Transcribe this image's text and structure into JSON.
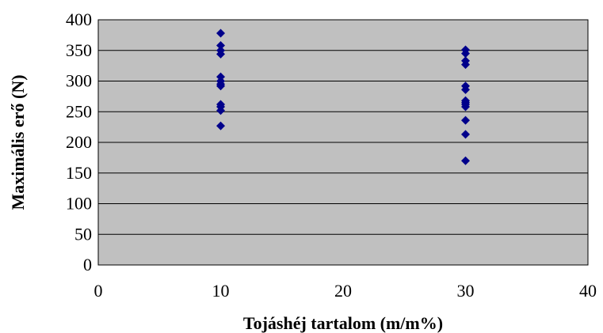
{
  "chart_data": {
    "type": "scatter",
    "title": "",
    "xlabel": "Tojáshéj tartalom (m/m%)",
    "ylabel": "Maximális erő (N)",
    "xlim": [
      0,
      40
    ],
    "ylim": [
      0,
      400
    ],
    "xticks": [
      0,
      10,
      20,
      30,
      40
    ],
    "yticks": [
      0,
      50,
      100,
      150,
      200,
      250,
      300,
      350,
      400
    ],
    "grid": "horizontal",
    "legend": "none",
    "plot_background": "#c0c0c0",
    "marker": "diamond",
    "marker_color": "#00008b",
    "series": [
      {
        "points": [
          [
            10,
            378
          ],
          [
            10,
            358
          ],
          [
            10,
            350
          ],
          [
            10,
            344
          ],
          [
            10,
            307
          ],
          [
            10,
            300
          ],
          [
            10,
            295
          ],
          [
            10,
            292
          ],
          [
            10,
            262
          ],
          [
            10,
            258
          ],
          [
            10,
            252
          ],
          [
            10,
            227
          ],
          [
            30,
            351
          ],
          [
            30,
            345
          ],
          [
            30,
            333
          ],
          [
            30,
            327
          ],
          [
            30,
            292
          ],
          [
            30,
            286
          ],
          [
            30,
            268
          ],
          [
            30,
            265
          ],
          [
            30,
            262
          ],
          [
            30,
            258
          ],
          [
            30,
            236
          ],
          [
            30,
            213
          ],
          [
            30,
            170
          ]
        ]
      }
    ]
  }
}
